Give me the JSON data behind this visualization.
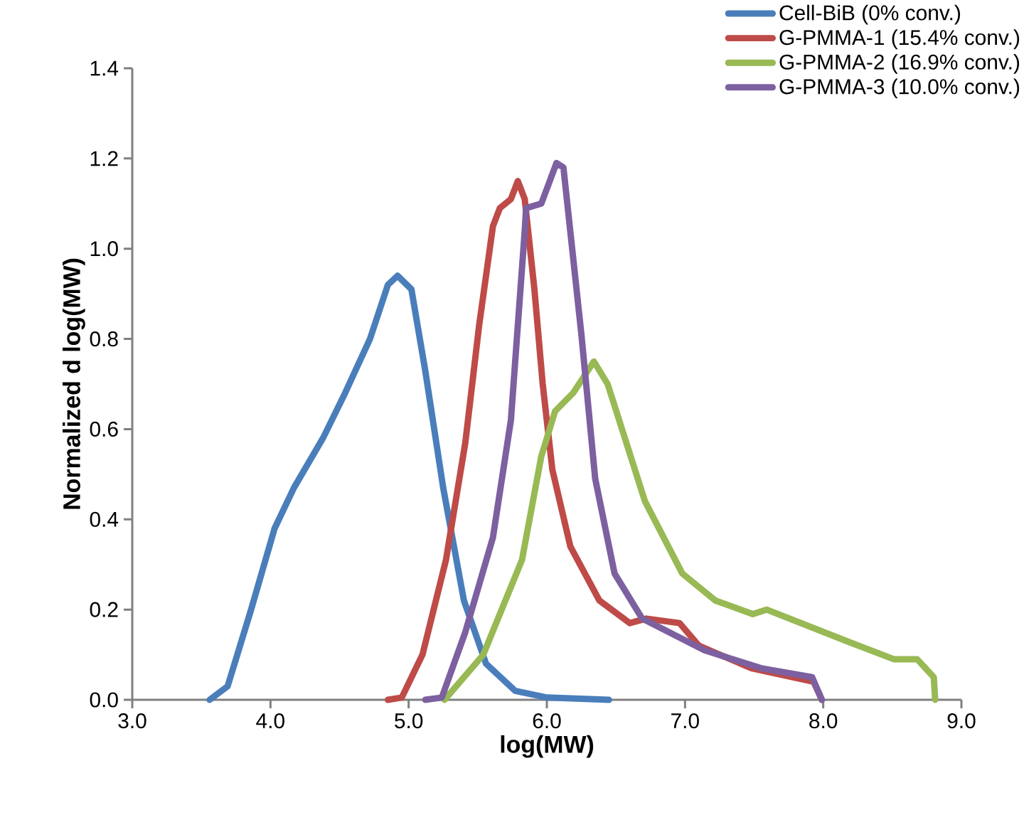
{
  "chart_data": {
    "type": "line",
    "xlabel": "log(MW)",
    "ylabel": "Normalized d log(MW)",
    "xlim": [
      3,
      9
    ],
    "ylim": [
      0,
      1.4
    ],
    "xticks": [
      {
        "value": 3,
        "label": "3.0"
      },
      {
        "value": 4,
        "label": "4.0"
      },
      {
        "value": 5,
        "label": "5.0"
      },
      {
        "value": 6,
        "label": "6.0"
      },
      {
        "value": 7,
        "label": "7.0"
      },
      {
        "value": 8,
        "label": "8.0"
      },
      {
        "value": 9,
        "label": "9.0"
      }
    ],
    "yticks": [
      {
        "value": 0,
        "label": "0.0"
      },
      {
        "value": 0.2,
        "label": "0.2"
      },
      {
        "value": 0.4,
        "label": "0.4"
      },
      {
        "value": 0.6,
        "label": "0.6"
      },
      {
        "value": 0.8,
        "label": "0.8"
      },
      {
        "value": 1.0,
        "label": "1.0"
      },
      {
        "value": 1.2,
        "label": "1.2"
      },
      {
        "value": 1.4,
        "label": "1.4"
      }
    ],
    "grid": false,
    "legend": "top right",
    "marker": "none",
    "line_style": "solid",
    "series": [
      {
        "name": "Cell-BiB (0% conv.)",
        "color": "#4a7ebb",
        "x": [
          3.56,
          3.69,
          3.86,
          4.03,
          4.17,
          4.38,
          4.54,
          4.72,
          4.85,
          4.92,
          5.02,
          5.12,
          5.25,
          5.4,
          5.56,
          5.77,
          6.0,
          6.45
        ],
        "values": [
          0,
          0.03,
          0.2,
          0.38,
          0.47,
          0.58,
          0.68,
          0.8,
          0.92,
          0.94,
          0.91,
          0.73,
          0.47,
          0.22,
          0.08,
          0.02,
          0.005,
          0
        ]
      },
      {
        "name": "G-PMMA-1 (15.4% conv.)",
        "color": "#be4b48",
        "x": [
          4.85,
          4.95,
          5.1,
          5.27,
          5.41,
          5.51,
          5.61,
          5.66,
          5.74,
          5.79,
          5.84,
          5.91,
          5.97,
          6.04,
          6.17,
          6.38,
          6.6,
          6.72,
          6.96,
          7.1,
          7.48,
          7.93,
          7.99
        ],
        "values": [
          0,
          0.005,
          0.1,
          0.31,
          0.57,
          0.83,
          1.05,
          1.09,
          1.11,
          1.15,
          1.11,
          0.91,
          0.7,
          0.51,
          0.34,
          0.22,
          0.17,
          0.18,
          0.17,
          0.12,
          0.07,
          0.04,
          0
        ]
      },
      {
        "name": "G-PMMA-2 (16.9% conv.)",
        "color": "#98b954",
        "x": [
          5.26,
          5.54,
          5.82,
          5.96,
          6.06,
          6.19,
          6.34,
          6.44,
          6.71,
          6.98,
          7.22,
          7.49,
          7.59,
          8.17,
          8.51,
          8.68,
          8.8,
          8.81
        ],
        "values": [
          0,
          0.1,
          0.31,
          0.54,
          0.64,
          0.68,
          0.75,
          0.7,
          0.44,
          0.28,
          0.22,
          0.19,
          0.2,
          0.13,
          0.09,
          0.09,
          0.05,
          0
        ]
      },
      {
        "name": "G-PMMA-3 (10.0% conv.)",
        "color": "#7d60a0",
        "x": [
          5.12,
          5.24,
          5.41,
          5.61,
          5.74,
          5.84,
          5.85,
          5.96,
          6.07,
          6.12,
          6.25,
          6.35,
          6.49,
          6.69,
          7.14,
          7.55,
          7.92,
          7.99
        ],
        "values": [
          0,
          0.005,
          0.15,
          0.36,
          0.62,
          1.04,
          1.09,
          1.1,
          1.19,
          1.18,
          0.81,
          0.49,
          0.28,
          0.18,
          0.11,
          0.07,
          0.05,
          0
        ]
      }
    ]
  }
}
